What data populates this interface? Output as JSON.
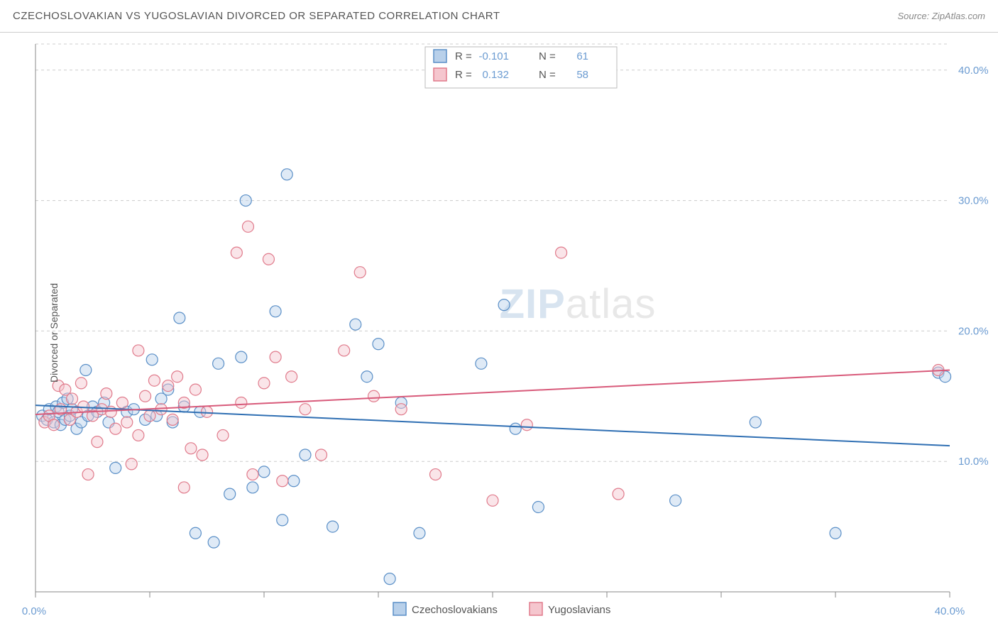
{
  "title": "CZECHOSLOVAKIAN VS YUGOSLAVIAN DIVORCED OR SEPARATED CORRELATION CHART",
  "source": "Source: ZipAtlas.com",
  "ylabel": "Divorced or Separated",
  "watermark_zip": "ZIP",
  "watermark_atlas": "atlas",
  "chart": {
    "type": "scatter",
    "background_color": "#ffffff",
    "grid_color": "#cccccc",
    "axis_color": "#888888",
    "tick_label_color": "#6b9bd1",
    "xlim": [
      0,
      40
    ],
    "ylim": [
      0,
      42
    ],
    "x_ticks": [
      0,
      5,
      10,
      15,
      20,
      25,
      30,
      35,
      40
    ],
    "x_tick_labels_shown": {
      "0": "0.0%",
      "40": "40.0%"
    },
    "y_gridlines": [
      10,
      20,
      30,
      40,
      42
    ],
    "y_tick_labels": {
      "10": "10.0%",
      "20": "20.0%",
      "30": "30.0%",
      "40": "40.0%"
    },
    "marker_radius": 8,
    "marker_stroke_width": 1.2,
    "marker_fill_opacity": 0.45,
    "series": [
      {
        "name": "Czechoslovakians",
        "color_fill": "#b8d0ea",
        "color_stroke": "#5a8fc7",
        "R": "-0.101",
        "N": "61",
        "trend": {
          "x1": 0,
          "y1": 14.3,
          "x2": 40,
          "y2": 11.2,
          "color": "#2f6fb3",
          "width": 2
        },
        "points": [
          [
            0.3,
            13.5
          ],
          [
            0.5,
            13.2
          ],
          [
            0.6,
            14.0
          ],
          [
            0.8,
            13.0
          ],
          [
            0.9,
            14.2
          ],
          [
            1.0,
            13.8
          ],
          [
            1.1,
            12.8
          ],
          [
            1.2,
            14.5
          ],
          [
            1.3,
            13.2
          ],
          [
            1.4,
            14.8
          ],
          [
            1.5,
            13.5
          ],
          [
            1.6,
            14.0
          ],
          [
            1.8,
            12.5
          ],
          [
            2.0,
            13.0
          ],
          [
            2.2,
            17.0
          ],
          [
            2.3,
            13.5
          ],
          [
            2.5,
            14.2
          ],
          [
            2.7,
            13.8
          ],
          [
            3.0,
            14.5
          ],
          [
            3.2,
            13.0
          ],
          [
            3.5,
            9.5
          ],
          [
            4.0,
            13.8
          ],
          [
            4.3,
            14.0
          ],
          [
            4.8,
            13.2
          ],
          [
            5.1,
            17.8
          ],
          [
            5.3,
            13.5
          ],
          [
            5.5,
            14.8
          ],
          [
            5.8,
            15.5
          ],
          [
            6.0,
            13.0
          ],
          [
            6.3,
            21.0
          ],
          [
            6.5,
            14.2
          ],
          [
            7.0,
            4.5
          ],
          [
            7.2,
            13.8
          ],
          [
            7.8,
            3.8
          ],
          [
            8.0,
            17.5
          ],
          [
            8.5,
            7.5
          ],
          [
            9.0,
            18.0
          ],
          [
            9.2,
            30.0
          ],
          [
            9.5,
            8.0
          ],
          [
            10.0,
            9.2
          ],
          [
            10.5,
            21.5
          ],
          [
            10.8,
            5.5
          ],
          [
            11.0,
            32.0
          ],
          [
            11.3,
            8.5
          ],
          [
            11.8,
            10.5
          ],
          [
            13.0,
            5.0
          ],
          [
            14.0,
            20.5
          ],
          [
            14.5,
            16.5
          ],
          [
            15.0,
            19.0
          ],
          [
            15.5,
            1.0
          ],
          [
            16.0,
            14.5
          ],
          [
            16.8,
            4.5
          ],
          [
            19.5,
            17.5
          ],
          [
            20.5,
            22.0
          ],
          [
            21.0,
            12.5
          ],
          [
            22.0,
            6.5
          ],
          [
            31.5,
            13.0
          ],
          [
            35.0,
            4.5
          ],
          [
            39.5,
            16.8
          ],
          [
            39.8,
            16.5
          ],
          [
            28.0,
            7.0
          ]
        ]
      },
      {
        "name": "Yugoslavians",
        "color_fill": "#f5c6ce",
        "color_stroke": "#e07a8b",
        "R": "0.132",
        "N": "58",
        "trend": {
          "x1": 0,
          "y1": 13.6,
          "x2": 40,
          "y2": 17.0,
          "color": "#d85a7a",
          "width": 2
        },
        "points": [
          [
            0.4,
            13.0
          ],
          [
            0.6,
            13.5
          ],
          [
            0.8,
            12.8
          ],
          [
            1.0,
            15.8
          ],
          [
            1.1,
            14.0
          ],
          [
            1.3,
            15.5
          ],
          [
            1.5,
            13.2
          ],
          [
            1.6,
            14.8
          ],
          [
            1.8,
            13.8
          ],
          [
            2.0,
            16.0
          ],
          [
            2.1,
            14.2
          ],
          [
            2.3,
            9.0
          ],
          [
            2.5,
            13.5
          ],
          [
            2.7,
            11.5
          ],
          [
            2.9,
            14.0
          ],
          [
            3.1,
            15.2
          ],
          [
            3.3,
            13.8
          ],
          [
            3.5,
            12.5
          ],
          [
            3.8,
            14.5
          ],
          [
            4.0,
            13.0
          ],
          [
            4.2,
            9.8
          ],
          [
            4.5,
            18.5
          ],
          [
            4.8,
            15.0
          ],
          [
            5.0,
            13.5
          ],
          [
            5.2,
            16.2
          ],
          [
            5.5,
            14.0
          ],
          [
            5.8,
            15.8
          ],
          [
            6.0,
            13.2
          ],
          [
            6.2,
            16.5
          ],
          [
            6.5,
            14.5
          ],
          [
            6.8,
            11.0
          ],
          [
            7.0,
            15.5
          ],
          [
            7.3,
            10.5
          ],
          [
            7.5,
            13.8
          ],
          [
            8.2,
            12.0
          ],
          [
            8.8,
            26.0
          ],
          [
            9.0,
            14.5
          ],
          [
            9.3,
            28.0
          ],
          [
            9.5,
            9.0
          ],
          [
            10.0,
            16.0
          ],
          [
            10.2,
            25.5
          ],
          [
            10.5,
            18.0
          ],
          [
            10.8,
            8.5
          ],
          [
            11.2,
            16.5
          ],
          [
            11.8,
            14.0
          ],
          [
            12.5,
            10.5
          ],
          [
            13.5,
            18.5
          ],
          [
            14.2,
            24.5
          ],
          [
            14.8,
            15.0
          ],
          [
            16.0,
            14.0
          ],
          [
            17.5,
            9.0
          ],
          [
            20.0,
            7.0
          ],
          [
            21.5,
            12.8
          ],
          [
            23.0,
            26.0
          ],
          [
            25.5,
            7.5
          ],
          [
            39.5,
            17.0
          ],
          [
            6.5,
            8.0
          ],
          [
            4.5,
            12.0
          ]
        ]
      }
    ]
  },
  "stats_box": {
    "rows": [
      {
        "swatch": "blue",
        "R_label": "R =",
        "R": "-0.101",
        "N_label": "N =",
        "N": "61"
      },
      {
        "swatch": "pink",
        "R_label": "R =",
        "R": "0.132",
        "N_label": "N =",
        "N": "58"
      }
    ]
  },
  "legend": {
    "items": [
      {
        "swatch": "blue",
        "label": "Czechoslovakians"
      },
      {
        "swatch": "pink",
        "label": "Yugoslavians"
      }
    ]
  }
}
